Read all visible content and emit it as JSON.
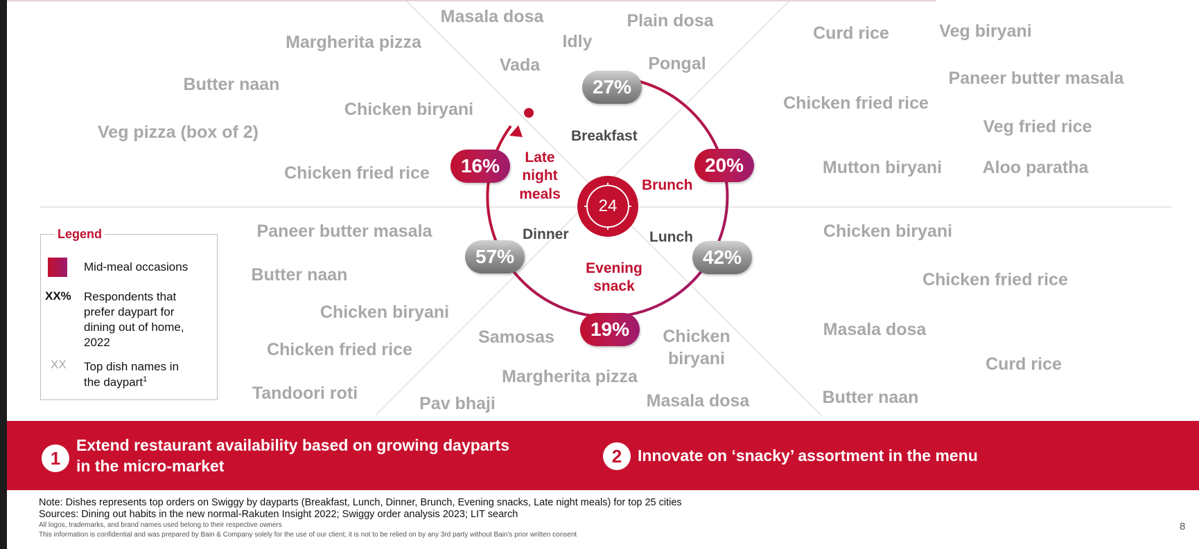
{
  "dayparts": {
    "breakfast": {
      "label": "Breakfast",
      "pct": "27%"
    },
    "brunch": {
      "label": "Brunch",
      "pct": "20%"
    },
    "lunch": {
      "label": "Lunch",
      "pct": "42%"
    },
    "evening_snack": {
      "line1": "Evening",
      "line2": "snack",
      "pct": "19%"
    },
    "dinner": {
      "label": "Dinner",
      "pct": "57%"
    },
    "late_night": {
      "line1": "Late",
      "line2": "night",
      "line3": "meals",
      "pct": "16%"
    }
  },
  "clock_label": "24",
  "dishes": {
    "top_left": [
      "Masala dosa",
      "Plain dosa",
      "Idly",
      "Margherita pizza",
      "Vada",
      "Pongal",
      "Butter naan",
      "Chicken biryani",
      "Veg pizza (box of 2)",
      "Chicken fried rice"
    ],
    "top_right": [
      "Curd rice",
      "Veg biryani",
      "Paneer butter masala",
      "Chicken fried rice",
      "Veg fried rice",
      "Mutton biryani",
      "Aloo paratha"
    ],
    "bottom_left": [
      "Paneer butter masala",
      "Butter naan",
      "Chicken biryani",
      "Chicken fried rice",
      "Samosas",
      "Margherita pizza",
      "Tandoori roti",
      "Pav bhaji",
      "Chicken",
      "biryani",
      "Masala dosa"
    ],
    "bottom_right": [
      "Chicken biryani",
      "Chicken fried rice",
      "Masala dosa",
      "Curd rice",
      "Butter naan"
    ]
  },
  "legend": {
    "title": "Legend",
    "mid_meal": "Mid-meal occasions",
    "pct_key": "XX%",
    "pct_desc": "Respondents that prefer daypart for dining out of home, 2022",
    "dish_key": "XX",
    "dish_desc": "Top dish names in the daypart",
    "dish_sup": "1"
  },
  "banner": {
    "item1_num": "1",
    "item1_line1": "Extend restaurant availability based on growing dayparts",
    "item1_line2": "in the micro-market",
    "item2_num": "2",
    "item2_text": "Innovate on ‘snacky’ assortment in the menu"
  },
  "footer": {
    "note": "Note: Dishes represents top orders on Swiggy by dayparts (Breakfast, Lunch, Dinner, Brunch, Evening snacks, Late night meals) for top 25 cities",
    "sources": "Sources: Dining out habits in the new normal-Rakuten Insight 2022; Swiggy order analysis 2023; LIT search",
    "disclaimer1": "All logos, trademarks, and brand names used belong to their respective owners",
    "disclaimer2": "This information is confidential and was prepared by Bain & Company solely for the use of our client; it is not to be relied on by any 3rd party without Bain's prior written consent"
  },
  "page_number": "8",
  "colors": {
    "accent_red": "#c8102e",
    "dish_gray": "#a8a8a8",
    "gradient_end": "#9c1b6d"
  }
}
